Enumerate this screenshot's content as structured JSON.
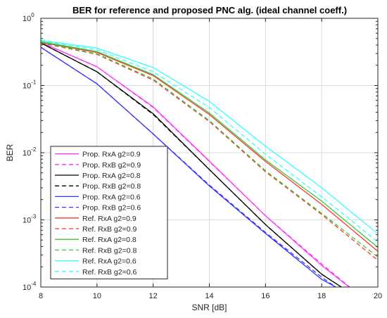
{
  "chart_data": {
    "type": "line",
    "title": "BER for reference and proposed PNC alg. (ideal channel coeff.)",
    "xlabel": "SNR [dB]",
    "ylabel": "BER",
    "xlim": [
      8,
      20
    ],
    "ylim": [
      0.0001,
      1
    ],
    "yscale": "log",
    "grid": true,
    "legend_position": "bottom-left",
    "x_ticks": [
      {
        "value": 8,
        "label": "8"
      },
      {
        "value": 10,
        "label": "10"
      },
      {
        "value": 12,
        "label": "12"
      },
      {
        "value": 14,
        "label": "14"
      },
      {
        "value": 16,
        "label": "16"
      },
      {
        "value": 18,
        "label": "18"
      },
      {
        "value": 20,
        "label": "20"
      }
    ],
    "y_ticks": [
      {
        "value": 1,
        "base": "10",
        "exp": "0"
      },
      {
        "value": 0.1,
        "base": "10",
        "exp": "-1"
      },
      {
        "value": 0.01,
        "base": "10",
        "exp": "-2"
      },
      {
        "value": 0.001,
        "base": "10",
        "exp": "-3"
      },
      {
        "value": 0.0001,
        "base": "10",
        "exp": "-4"
      }
    ],
    "series": [
      {
        "name": "Prop. RxA g2=0.9",
        "color": "#ff33ff",
        "dash": "solid",
        "x": [
          8,
          10,
          12,
          14,
          16,
          18,
          19
        ],
        "y": [
          0.44,
          0.19,
          0.048,
          0.0075,
          0.00115,
          0.00021,
          9.8e-05
        ]
      },
      {
        "name": "Prop. RxB g2=0.9",
        "color": "#ff33ff",
        "dash": "dashed",
        "x": [
          8,
          10,
          12,
          14,
          16,
          18,
          19
        ],
        "y": [
          0.44,
          0.19,
          0.047,
          0.0074,
          0.00115,
          0.00022,
          0.0001
        ]
      },
      {
        "name": "Prop. RxA g2=0.8",
        "color": "#000000",
        "dash": "solid",
        "x": [
          8,
          10,
          12,
          14,
          16,
          18,
          18.7
        ],
        "y": [
          0.43,
          0.16,
          0.038,
          0.0056,
          0.00085,
          0.000155,
          0.0001
        ]
      },
      {
        "name": "Prop. RxB g2=0.8",
        "color": "#000000",
        "dash": "dashed",
        "x": [
          8,
          10,
          12,
          14,
          16,
          18,
          18.7
        ],
        "y": [
          0.43,
          0.16,
          0.037,
          0.0056,
          0.00085,
          0.000155,
          0.0001
        ]
      },
      {
        "name": "Prop. RxA g2=0.6",
        "color": "#3333ff",
        "dash": "solid",
        "x": [
          8,
          10,
          12,
          14,
          16,
          18,
          18.5
        ],
        "y": [
          0.37,
          0.106,
          0.019,
          0.0032,
          0.00063,
          0.00013,
          0.0001
        ]
      },
      {
        "name": "Prop. RxB g2=0.6",
        "color": "#3333ff",
        "dash": "dashed",
        "x": [
          8,
          10,
          12,
          14,
          16,
          18,
          18.5
        ],
        "y": [
          0.37,
          0.106,
          0.019,
          0.0033,
          0.00065,
          0.00014,
          0.0001
        ]
      },
      {
        "name": "Ref. RxA g2=0.9",
        "color": "#ff3333",
        "dash": "solid",
        "x": [
          8,
          10,
          12,
          14,
          16,
          18,
          20
        ],
        "y": [
          0.44,
          0.31,
          0.14,
          0.037,
          0.0074,
          0.0017,
          0.00034
        ]
      },
      {
        "name": "Ref. RxB g2=0.9",
        "color": "#ff3333",
        "dash": "dashed",
        "x": [
          8,
          10,
          12,
          14,
          16,
          18,
          20
        ],
        "y": [
          0.43,
          0.29,
          0.12,
          0.029,
          0.0052,
          0.0012,
          0.00025
        ]
      },
      {
        "name": "Ref. RxA g2=0.8",
        "color": "#33cc33",
        "dash": "solid",
        "x": [
          8,
          10,
          12,
          14,
          16,
          18,
          20
        ],
        "y": [
          0.45,
          0.32,
          0.145,
          0.039,
          0.0078,
          0.0019,
          0.00039
        ]
      },
      {
        "name": "Ref. RxB g2=0.8",
        "color": "#33cc33",
        "dash": "dashed",
        "x": [
          8,
          10,
          12,
          14,
          16,
          18,
          20
        ],
        "y": [
          0.44,
          0.295,
          0.125,
          0.03,
          0.0054,
          0.00125,
          0.00028
        ]
      },
      {
        "name": "Ref. RxA g2=0.6",
        "color": "#33ffff",
        "dash": "solid",
        "x": [
          8,
          10,
          12,
          14,
          16,
          18,
          20
        ],
        "y": [
          0.47,
          0.36,
          0.185,
          0.058,
          0.0125,
          0.003,
          0.00062
        ]
      },
      {
        "name": "Ref. RxB g2=0.6",
        "color": "#33ffff",
        "dash": "dashed",
        "x": [
          8,
          10,
          12,
          14,
          16,
          18,
          20
        ],
        "y": [
          0.46,
          0.34,
          0.16,
          0.047,
          0.0095,
          0.0022,
          0.00047
        ]
      }
    ]
  }
}
